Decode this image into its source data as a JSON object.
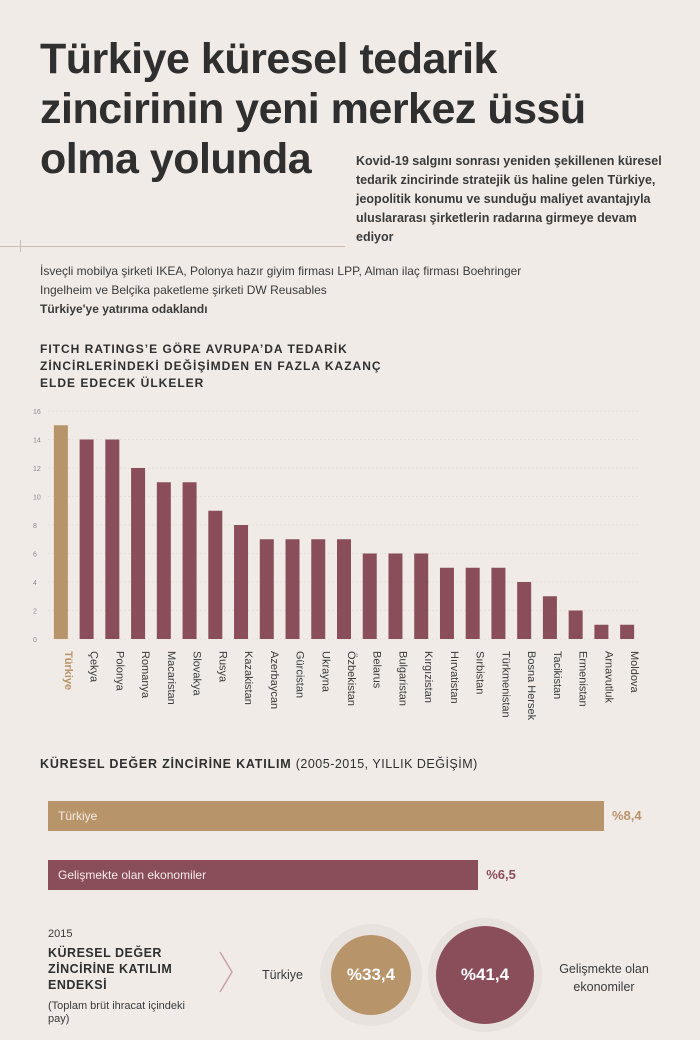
{
  "title": {
    "line1": "Türkiye küresel tedarik",
    "line2": "zincirinin yeni merkez üssü",
    "line3": "olma yolunda"
  },
  "lead": "Kovid-19 salgını sonrası yeniden şekillenen küresel tedarik zincirinde stratejik üs haline gelen Türkiye, jeopolitik konumu ve sunduğu maliyet avantajıyla uluslararası şirketlerin radarına girmeye devam ediyor",
  "intro": {
    "text": "İsveçli mobilya şirketi IKEA, Polonya hazır giyim firması LPP, Alman ilaç firması Boehringer Ingelheim ve Belçika paketleme şirketi DW Reusables",
    "bold": "Türkiye'ye yatırıma odaklandı"
  },
  "colors": {
    "gold": "#b8946a",
    "maroon": "#8a4e5b",
    "text": "#2f2f2f",
    "bg": "#f0ebe7"
  },
  "chart_data": [
    {
      "type": "bar",
      "title": "FITCH RATINGS’E GÖRE AVRUPA’DA TEDARİK ZİNCİRLERİNDEKİ DEĞİŞİMDEN EN FAZLA KAZANÇ ELDE EDECEK ÜLKELER",
      "categories": [
        "Türkiye",
        "Çekya",
        "Polonya",
        "Romanya",
        "Macaristan",
        "Slovakya",
        "Rusya",
        "Kazakistan",
        "Azerbaycan",
        "Gürcistan",
        "Ukrayna",
        "Özbekistan",
        "Belarus",
        "Bulgaristan",
        "Kırgızistan",
        "Hırvatistan",
        "Sırbistan",
        "Türkmenistan",
        "Bosna Hersek",
        "Tacikistan",
        "Ermenistan",
        "Arnavutluk",
        "Moldova"
      ],
      "values": [
        15,
        14,
        14,
        12,
        11,
        11,
        9,
        8,
        7,
        7,
        7,
        7,
        6,
        6,
        6,
        5,
        5,
        5,
        4,
        3,
        2,
        1,
        1
      ],
      "highlight": "Türkiye",
      "yticks": [
        "0",
        "2",
        "4",
        "6",
        "8",
        "10",
        "12",
        "14",
        "16"
      ],
      "ylim": [
        0,
        16
      ],
      "xlabel": "",
      "ylabel": ""
    },
    {
      "type": "bar",
      "orientation": "horizontal",
      "title": "KÜRESEL DEĞER ZİNCİRİNE KATILIM",
      "subtitle": "(2005-2015, YILLIK DEĞİŞİM)",
      "categories": [
        "Türkiye",
        "Gelişmekte olan ekonomiler"
      ],
      "values": [
        8.4,
        6.5
      ],
      "value_labels": [
        "%8,4",
        "%6,5"
      ]
    }
  ],
  "index": {
    "year": "2015",
    "title": "KÜRESEL DEĞER ZİNCİRİNE KATILIM ENDEKSİ",
    "note": "(Toplam brüt ihracat içindeki pay)",
    "items": [
      {
        "label": "Türkiye",
        "value": "%33,4",
        "number": 33.4
      },
      {
        "label": "Gelişmekte olan ekonomiler",
        "value": "%41,4",
        "number": 41.4
      }
    ]
  }
}
